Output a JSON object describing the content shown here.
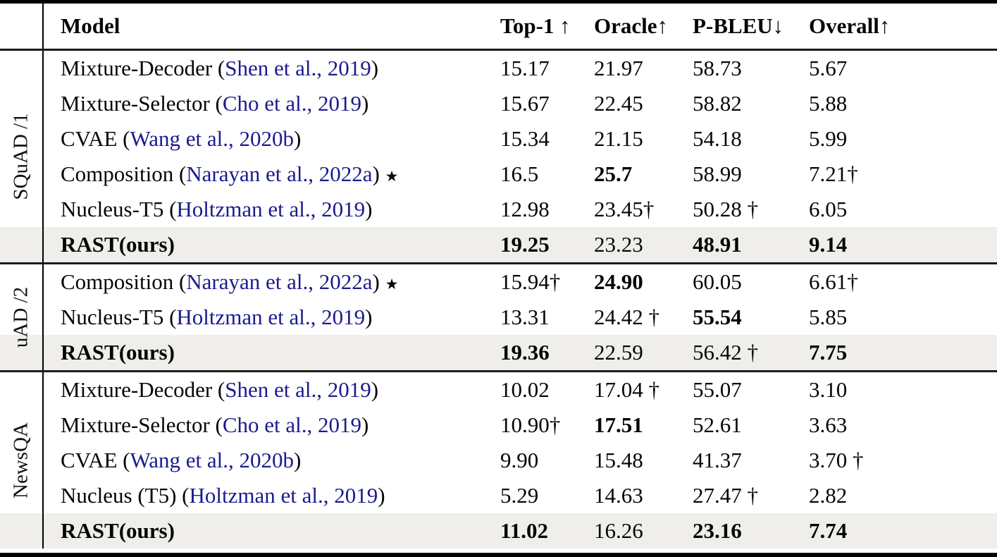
{
  "colors": {
    "citation_link": "#1b1b8f",
    "highlight_row_bg": "#efeeea",
    "rule": "#1c1c1c"
  },
  "header": {
    "model": "Model",
    "col1": "Top-1 ↑",
    "col2": "Oracle↑",
    "col3": "P-BLEU↓",
    "col4": "Overall↑"
  },
  "sections": [
    {
      "label": "SQuAD /1",
      "rows": [
        {
          "pre": "Mixture-Decoder (",
          "cite": "Shen et al., 2019",
          "post": ")",
          "v1": "15.17",
          "v2": "21.97",
          "v3": "58.73",
          "v4": "5.67"
        },
        {
          "pre": "Mixture-Selector (",
          "cite": "Cho et al., 2019",
          "post": ")",
          "v1": "15.67",
          "v2": "22.45",
          "v3": "58.82",
          "v4": "5.88"
        },
        {
          "pre": "CVAE (",
          "cite": "Wang et al., 2020b",
          "post": ")",
          "v1": "15.34",
          "v2": "21.15",
          "v3": "54.18",
          "v4": "5.99"
        },
        {
          "pre": "Composition (",
          "cite": "Narayan et al., 2022a",
          "post": ") ",
          "star": "★",
          "v1": "16.5",
          "v2": "25.7",
          "v3": "58.99",
          "v4": "7.21†"
        },
        {
          "pre": "Nucleus-T5 (",
          "cite": "Holtzman et al., 2019",
          "post": ")",
          "v1": "12.98",
          "v2": "23.45†",
          "v3": "50.28 †",
          "v4": "6.05"
        },
        {
          "pre": "RAST(ours)",
          "cite": "",
          "post": "",
          "v1": "19.25",
          "v2": "23.23",
          "v3": "48.91",
          "v4": "9.14"
        }
      ]
    },
    {
      "label": "uAD /2",
      "rows": [
        {
          "pre": "Composition (",
          "cite": "Narayan et al., 2022a",
          "post": ") ",
          "star": "★",
          "v1": "15.94†",
          "v2": "24.90",
          "v3": "60.05",
          "v4": "6.61†"
        },
        {
          "pre": "Nucleus-T5 (",
          "cite": "Holtzman et al., 2019",
          "post": ")",
          "v1": "13.31",
          "v2": "24.42 †",
          "v3": "55.54",
          "v4": "5.85"
        },
        {
          "pre": "RAST(ours)",
          "cite": "",
          "post": "",
          "v1": "19.36",
          "v2": "22.59",
          "v3": "56.42 †",
          "v4": "7.75"
        }
      ]
    },
    {
      "label": "NewsQA",
      "rows": [
        {
          "pre": "Mixture-Decoder (",
          "cite": "Shen et al., 2019",
          "post": ")",
          "v1": "10.02",
          "v2": "17.04 †",
          "v3": "55.07",
          "v4": "3.10"
        },
        {
          "pre": "Mixture-Selector (",
          "cite": "Cho et al., 2019",
          "post": ")",
          "v1": "10.90†",
          "v2": "17.51",
          "v3": "52.61",
          "v4": "3.63"
        },
        {
          "pre": "CVAE (",
          "cite": "Wang et al., 2020b",
          "post": ")",
          "v1": "9.90",
          "v2": "15.48",
          "v3": "41.37",
          "v4": "3.70 †"
        },
        {
          "pre": "Nucleus (T5) (",
          "cite": "Holtzman et al., 2019",
          "post": ")",
          "v1": "5.29",
          "v2": "14.63",
          "v3": "27.47 †",
          "v4": "2.82"
        },
        {
          "pre": "RAST(ours)",
          "cite": "",
          "post": "",
          "v1": "11.02",
          "v2": "16.26",
          "v3": "23.16",
          "v4": "7.74"
        }
      ]
    }
  ]
}
